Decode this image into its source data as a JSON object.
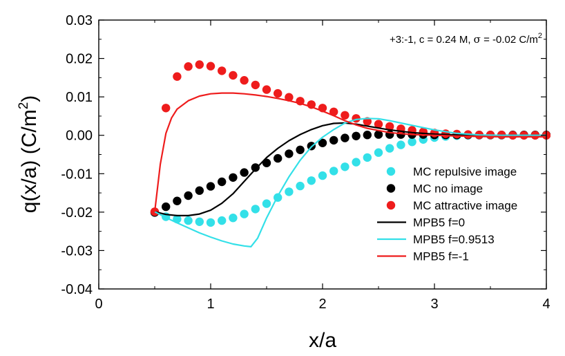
{
  "chart_data": {
    "type": "scatter",
    "title": "",
    "annotation": {
      "prefix": "+3:-1, c = 0.24 M, ",
      "sigma_symbol": "σ",
      "suffix": " = -0.02 C/m",
      "sup": "2"
    },
    "xlabel": "x/a",
    "ylabel": {
      "base": "q(x/a) (C/m",
      "sup": "2",
      "close": ")"
    },
    "xlim": [
      0,
      4
    ],
    "ylim": [
      -0.04,
      0.03
    ],
    "xticks": [
      0,
      1,
      2,
      3,
      4
    ],
    "xtick_labels": [
      "0",
      "1",
      "2",
      "3",
      "4"
    ],
    "yticks": [
      -0.04,
      -0.03,
      -0.02,
      -0.01,
      0.0,
      0.01,
      0.02,
      0.03
    ],
    "ytick_labels": [
      "-0.04",
      "-0.03",
      "-0.02",
      "-0.01",
      "0.00",
      "0.01",
      "0.02",
      "0.03"
    ],
    "legend_position": "right",
    "series": [
      {
        "name": "MC repulsive image",
        "kind": "scatter",
        "color": "#33e0e8",
        "x": [
          0.5,
          0.6,
          0.7,
          0.8,
          0.9,
          1.0,
          1.1,
          1.2,
          1.3,
          1.4,
          1.5,
          1.6,
          1.7,
          1.8,
          1.9,
          2.0,
          2.1,
          2.2,
          2.3,
          2.4,
          2.5,
          2.6,
          2.7,
          2.8,
          2.9,
          3.0,
          3.1,
          3.2,
          3.3,
          3.4,
          3.5,
          3.6,
          3.7,
          3.8,
          3.9,
          4.0
        ],
        "y": [
          -0.0201,
          -0.0212,
          -0.0218,
          -0.0222,
          -0.0225,
          -0.0227,
          -0.0222,
          -0.0215,
          -0.0205,
          -0.0192,
          -0.0178,
          -0.0162,
          -0.0147,
          -0.0132,
          -0.0118,
          -0.0105,
          -0.0093,
          -0.0082,
          -0.007,
          -0.0058,
          -0.0045,
          -0.0034,
          -0.0025,
          -0.0017,
          -0.0011,
          -0.0006,
          -0.0003,
          -0.0001,
          0.0,
          0.0,
          0.0,
          0.0,
          0.0,
          0.0,
          0.0,
          0.0
        ]
      },
      {
        "name": "MC no image",
        "kind": "scatter",
        "color": "#000000",
        "x": [
          0.5,
          0.6,
          0.7,
          0.8,
          0.9,
          1.0,
          1.1,
          1.2,
          1.3,
          1.4,
          1.5,
          1.6,
          1.7,
          1.8,
          1.9,
          2.0,
          2.1,
          2.2,
          2.3,
          2.4,
          2.5,
          2.6,
          2.7,
          2.8,
          2.9,
          3.0,
          3.1,
          3.2,
          3.3,
          3.4,
          3.5,
          3.6,
          3.7,
          3.8,
          3.9,
          4.0
        ],
        "y": [
          -0.0201,
          -0.0186,
          -0.0171,
          -0.0157,
          -0.0144,
          -0.0133,
          -0.0121,
          -0.011,
          -0.0097,
          -0.0084,
          -0.0072,
          -0.006,
          -0.0048,
          -0.0038,
          -0.0028,
          -0.002,
          -0.0013,
          -0.0007,
          -0.0002,
          0.0001,
          0.0002,
          0.0002,
          0.0002,
          0.0002,
          0.0002,
          0.0001,
          0.0001,
          0.0001,
          0.0001,
          0.0001,
          0.0001,
          0.0001,
          0.0001,
          0.0001,
          0.0001,
          0.0001
        ]
      },
      {
        "name": "MC attractive image",
        "kind": "scatter",
        "color": "#ee1c1c",
        "x": [
          0.5,
          0.6,
          0.7,
          0.8,
          0.9,
          1.0,
          1.1,
          1.2,
          1.3,
          1.4,
          1.5,
          1.6,
          1.7,
          1.8,
          1.9,
          2.0,
          2.1,
          2.2,
          2.3,
          2.4,
          2.5,
          2.6,
          2.7,
          2.8,
          2.9,
          3.0,
          3.1,
          3.2,
          3.3,
          3.4,
          3.5,
          3.6,
          3.7,
          3.8,
          3.9,
          4.0
        ],
        "y": [
          -0.0199,
          0.0071,
          0.0153,
          0.0179,
          0.0184,
          0.018,
          0.0168,
          0.0156,
          0.0143,
          0.0131,
          0.0119,
          0.0109,
          0.0099,
          0.0089,
          0.008,
          0.0071,
          0.0061,
          0.0052,
          0.0044,
          0.0036,
          0.0029,
          0.0023,
          0.0017,
          0.0013,
          0.0009,
          0.0006,
          0.0004,
          0.0003,
          0.0002,
          0.0001,
          0.0001,
          0.0001,
          0.0,
          0.0,
          0.0,
          0.0
        ]
      },
      {
        "name": "MPB5 f=0",
        "kind": "line",
        "color": "#000000",
        "x": [
          0.5,
          0.6,
          0.7,
          0.8,
          0.9,
          1.0,
          1.1,
          1.2,
          1.3,
          1.4,
          1.5,
          1.6,
          1.7,
          1.8,
          1.9,
          2.0,
          2.1,
          2.2,
          2.3,
          2.4,
          2.6,
          2.8,
          3.0,
          3.2,
          3.4,
          3.6,
          3.8,
          4.0
        ],
        "y": [
          -0.0199,
          -0.0206,
          -0.0209,
          -0.0209,
          -0.0205,
          -0.0195,
          -0.0177,
          -0.0152,
          -0.012,
          -0.0088,
          -0.0058,
          -0.0034,
          -0.0014,
          0.0002,
          0.0015,
          0.0025,
          0.0031,
          0.0032,
          0.0029,
          0.0024,
          0.0014,
          0.0007,
          0.0003,
          0.0001,
          0.0,
          0.0,
          0.0,
          0.0
        ]
      },
      {
        "name": "MPB5 f=0.9513",
        "kind": "line",
        "color": "#33e0e8",
        "x": [
          0.5,
          0.6,
          0.7,
          0.8,
          0.9,
          1.0,
          1.1,
          1.2,
          1.3,
          1.36,
          1.42,
          1.5,
          1.6,
          1.7,
          1.8,
          1.9,
          2.0,
          2.1,
          2.2,
          2.3,
          2.4,
          2.5,
          2.6,
          2.8,
          3.0,
          3.2,
          3.4,
          3.6,
          3.8,
          4.0
        ],
        "y": [
          -0.0199,
          -0.0214,
          -0.0228,
          -0.0241,
          -0.0254,
          -0.0265,
          -0.0275,
          -0.0283,
          -0.0288,
          -0.029,
          -0.0268,
          -0.0215,
          -0.0158,
          -0.0108,
          -0.0065,
          -0.003,
          -0.0005,
          0.0015,
          0.0032,
          0.0041,
          0.0044,
          0.0043,
          0.0038,
          0.0026,
          0.0014,
          0.0005,
          0.0001,
          0.0,
          0.0,
          0.0
        ]
      },
      {
        "name": "MPB5 f=-1",
        "kind": "line",
        "color": "#ee1c1c",
        "x": [
          0.5,
          0.55,
          0.6,
          0.65,
          0.7,
          0.8,
          0.9,
          1.0,
          1.1,
          1.2,
          1.3,
          1.4,
          1.5,
          1.6,
          1.7,
          1.8,
          1.9,
          2.0,
          2.1,
          2.2,
          2.3,
          2.4,
          2.6,
          2.8,
          3.0,
          3.2,
          3.4,
          3.6,
          3.8,
          4.0
        ],
        "y": [
          -0.0199,
          -0.0075,
          0.0005,
          0.0045,
          0.0068,
          0.009,
          0.0102,
          0.0108,
          0.011,
          0.011,
          0.0108,
          0.0105,
          0.0101,
          0.0096,
          0.009,
          0.0083,
          0.0074,
          0.0063,
          0.0051,
          0.0038,
          0.0027,
          0.0018,
          0.0007,
          0.0002,
          0.0,
          -0.0002,
          -0.0003,
          -0.0004,
          -0.0004,
          -0.0004
        ]
      }
    ]
  }
}
